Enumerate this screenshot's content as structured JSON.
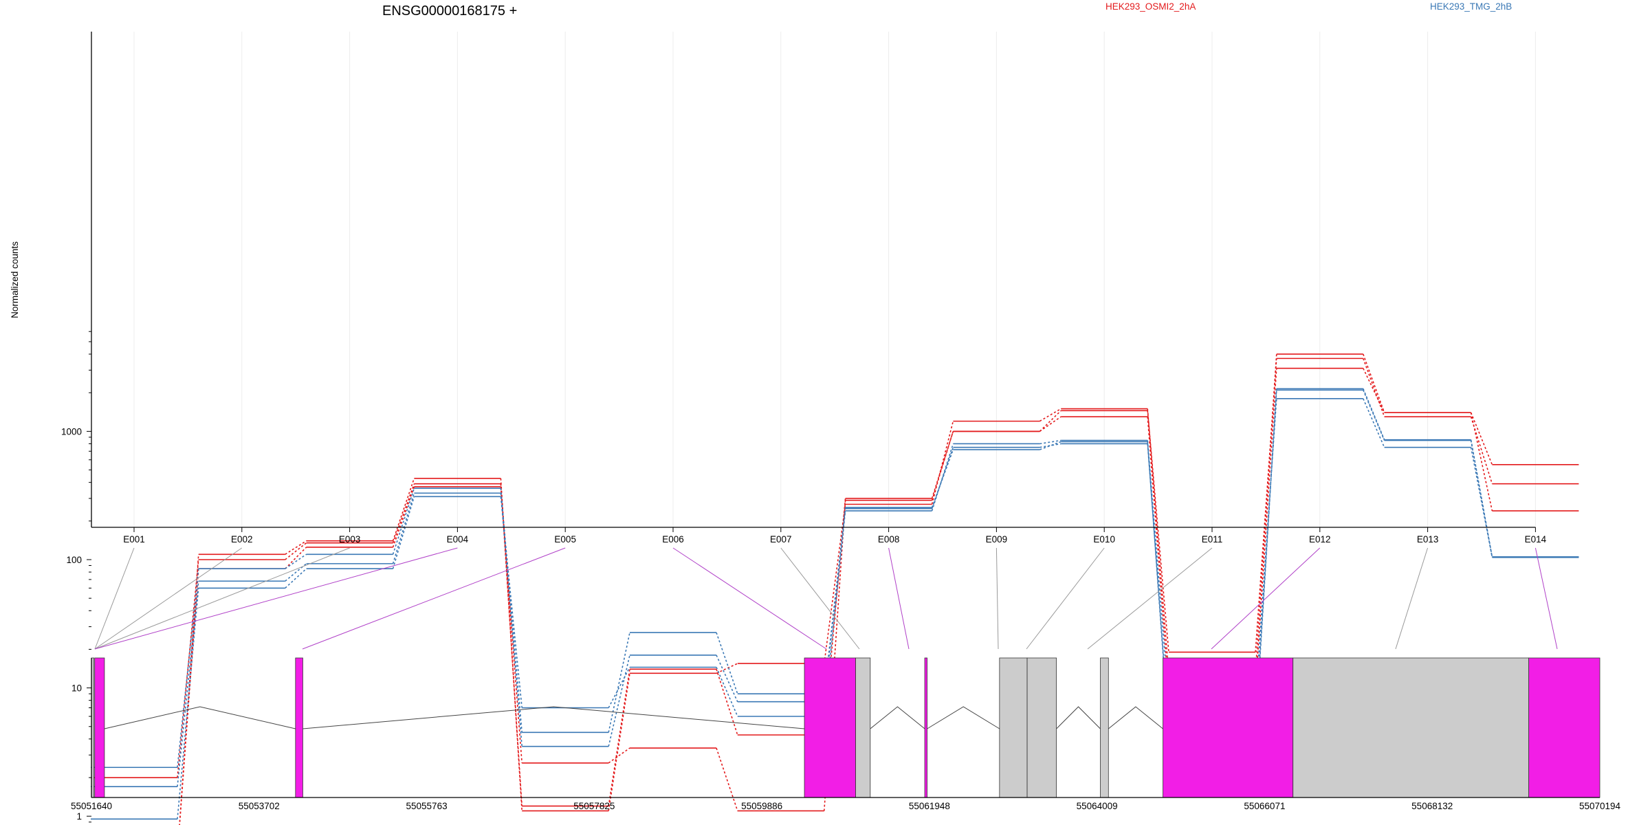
{
  "colors": {
    "condition_a": "#e31a1c",
    "condition_b": "#3a78b5",
    "exon_highlight": "#f21ee6",
    "exon_plain": "#cccccc",
    "connector_highlight": "#b040c8",
    "connector_plain": "#999999"
  },
  "chart_data": {
    "type": "line",
    "title": "ENSG00000168175 +",
    "ylabel": "Normalized counts",
    "xlabel": "",
    "yscale": "log",
    "ylim": [
      0.5,
      6000
    ],
    "yticks": [
      1,
      10,
      100,
      1000
    ],
    "ytick_labels": [
      "1",
      "10",
      "100",
      "1000"
    ],
    "grid": "vertical lines at each exon",
    "legend_position": "top-right",
    "categories": [
      "E001",
      "E002",
      "E003",
      "E004",
      "E005",
      "E006",
      "E007",
      "E008",
      "E009",
      "E010",
      "E011",
      "E012",
      "E013",
      "E014"
    ],
    "series": [
      {
        "condition": "a",
        "values": [
          0.5,
          110,
          140,
          430,
          1.1,
          13,
          15.5,
          270,
          1200,
          1500,
          13,
          4000,
          1400,
          550
        ]
      },
      {
        "condition": "a",
        "values": [
          2.0,
          100,
          135,
          390,
          1.2,
          14,
          4.3,
          300,
          1000,
          1450,
          19,
          3700,
          1300,
          390
        ]
      },
      {
        "condition": "a",
        "values": [
          0.5,
          85,
          125,
          370,
          2.6,
          3.4,
          1.1,
          290,
          1000,
          1300,
          9.5,
          3100,
          1400,
          240
        ]
      },
      {
        "condition": "b",
        "values": [
          2.4,
          85,
          110,
          360,
          4.5,
          27,
          9.0,
          250,
          750,
          800,
          5.0,
          2100,
          850,
          105
        ]
      },
      {
        "condition": "b",
        "values": [
          1.7,
          68,
          93,
          330,
          3.5,
          18,
          7.8,
          255,
          720,
          830,
          4.5,
          2150,
          860,
          104
        ]
      },
      {
        "condition": "b",
        "values": [
          0.95,
          60,
          85,
          310,
          7.0,
          14.5,
          6.0,
          240,
          800,
          850,
          7.8,
          1800,
          750,
          105
        ]
      }
    ],
    "legend": [
      {
        "label": "HEK293_OSMI2_2hA",
        "condition": "a"
      },
      {
        "label": "HEK293_TMG_2hB",
        "condition": "b"
      }
    ],
    "genomic_coordinates": [
      "55051640",
      "55053702",
      "55055763",
      "55057825",
      "55059886",
      "55061948",
      "55064009",
      "55066071",
      "55068132",
      "55070194"
    ],
    "exon_links": [
      "E001",
      "E002",
      "E003",
      "E004",
      "E005",
      "E006",
      "E007",
      "E008",
      "E009",
      "E010",
      "E011",
      "E012",
      "E013",
      "E014"
    ],
    "exon_link_highlight": [
      false,
      false,
      false,
      true,
      true,
      true,
      false,
      true,
      false,
      false,
      false,
      true,
      false,
      true
    ],
    "exon_blocks": [
      {
        "start": 55051640,
        "end": 55051670,
        "highlight": false
      },
      {
        "start": 55051680,
        "end": 55051800,
        "highlight": true
      },
      {
        "start": 55054150,
        "end": 55054240,
        "highlight": true
      },
      {
        "start": 55060410,
        "end": 55061040,
        "highlight": true
      },
      {
        "start": 55061040,
        "end": 55061220,
        "highlight": false
      },
      {
        "start": 55061890,
        "end": 55061920,
        "highlight": true
      },
      {
        "start": 55062810,
        "end": 55063150,
        "highlight": false
      },
      {
        "start": 55063150,
        "end": 55063510,
        "highlight": false
      },
      {
        "start": 55064050,
        "end": 55064150,
        "highlight": false
      },
      {
        "start": 55064820,
        "end": 55066420,
        "highlight": true
      },
      {
        "start": 55066420,
        "end": 55069320,
        "highlight": false
      },
      {
        "start": 55069320,
        "end": 55070194,
        "highlight": true
      }
    ]
  }
}
